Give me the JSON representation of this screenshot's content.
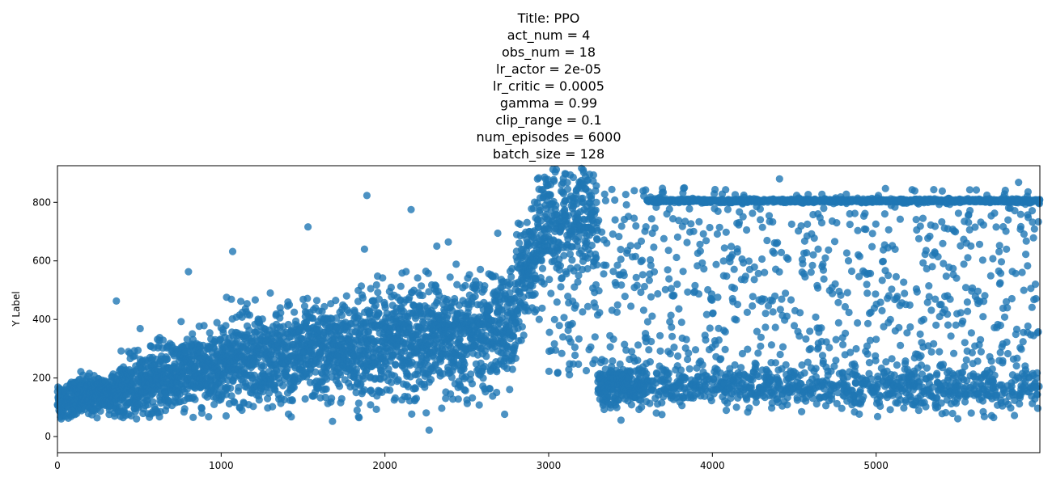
{
  "chart_data": {
    "type": "scatter",
    "title_lines": [
      "Title: PPO",
      "act_num = 4",
      "obs_num = 18",
      "lr_actor = 2e-05",
      "lr_critic = 0.0005",
      "gamma = 0.99",
      "clip_range = 0.1",
      "num_episodes = 6000",
      "batch_size = 128"
    ],
    "xlabel": "",
    "ylabel": "Y Label",
    "xlim": [
      0,
      6000
    ],
    "ylim": [
      -55,
      925
    ],
    "xticks": [
      0,
      1000,
      2000,
      3000,
      4000,
      5000
    ],
    "yticks": [
      0,
      200,
      400,
      600,
      800
    ],
    "grid": false,
    "legend": "none",
    "color": "#1f77b4",
    "num_points": 6000,
    "plateau_value": 805,
    "plateau_start": 3600,
    "segments": [
      {
        "x_start": 0,
        "x_end": 400,
        "y_start": 120,
        "y_end": 160,
        "spread": 35
      },
      {
        "x_start": 400,
        "x_end": 1000,
        "y_start": 160,
        "y_end": 250,
        "spread": 60
      },
      {
        "x_start": 1000,
        "x_end": 1800,
        "y_start": 250,
        "y_end": 300,
        "spread": 80
      },
      {
        "x_start": 1800,
        "x_end": 2800,
        "y_start": 300,
        "y_end": 380,
        "spread": 95
      },
      {
        "x_start": 2800,
        "x_end": 3000,
        "y_start": 500,
        "y_end": 700,
        "spread": 110
      },
      {
        "x_start": 3000,
        "x_end": 3300,
        "y_start": 760,
        "y_end": 740,
        "spread": 90
      },
      {
        "x_start": 3300,
        "x_end": 6000,
        "y_start": 175,
        "y_end": 160,
        "spread": 35
      }
    ],
    "outliers": [
      {
        "x": 360,
        "y": 463
      },
      {
        "x": 800,
        "y": 563
      },
      {
        "x": 1070,
        "y": 632
      },
      {
        "x": 1530,
        "y": 716
      },
      {
        "x": 1890,
        "y": 823
      },
      {
        "x": 2160,
        "y": 775
      },
      {
        "x": 2270,
        "y": 22
      },
      {
        "x": 1680,
        "y": 52
      },
      {
        "x": 3150,
        "y": 885
      },
      {
        "x": 4410,
        "y": 880
      },
      {
        "x": 5870,
        "y": 868
      }
    ]
  }
}
